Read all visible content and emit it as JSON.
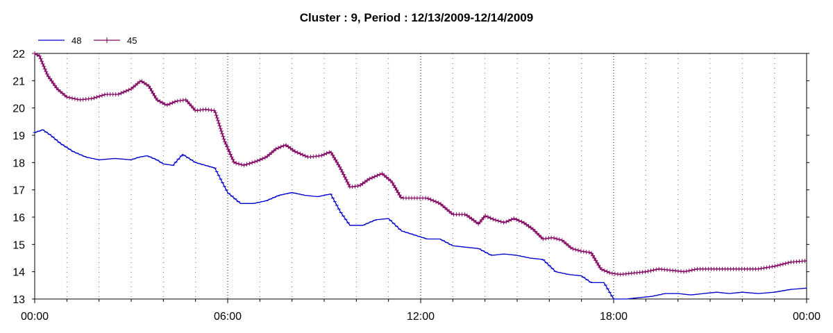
{
  "chart_data": {
    "type": "line",
    "title": "Cluster : 9, Period : 12/13/2009-12/14/2009",
    "xlabel": "",
    "ylabel": "",
    "x_ticks": [
      "00:00",
      "06:00",
      "12:00",
      "18:00",
      "00:00"
    ],
    "x_range_hours": [
      0,
      24
    ],
    "ylim": [
      13,
      22
    ],
    "y_ticks": [
      13,
      14,
      15,
      16,
      17,
      18,
      19,
      20,
      21,
      22
    ],
    "grid": {
      "major_vertical": "dotted",
      "minor_vertical": "dotted"
    },
    "legend_position": "top-left",
    "series": [
      {
        "name": "48",
        "color": "#0000cc",
        "marker": "none",
        "x": [
          0,
          0.25,
          0.5,
          0.8,
          1.2,
          1.6,
          2.0,
          2.5,
          3.0,
          3.25,
          3.5,
          3.8,
          4.0,
          4.3,
          4.6,
          5.0,
          5.3,
          5.6,
          6.0,
          6.4,
          6.8,
          7.2,
          7.6,
          8.0,
          8.4,
          8.8,
          9.2,
          9.5,
          9.8,
          10.2,
          10.6,
          11.0,
          11.4,
          11.8,
          12.2,
          12.6,
          13.0,
          13.4,
          13.8,
          14.2,
          14.6,
          15.0,
          15.4,
          15.8,
          16.2,
          16.6,
          17.0,
          17.3,
          17.7,
          18.0,
          18.4,
          18.8,
          19.2,
          19.6,
          20.0,
          20.4,
          20.8,
          21.2,
          21.6,
          22.0,
          22.5,
          23.0,
          23.5,
          24.0
        ],
        "values": [
          19.1,
          19.2,
          19.0,
          18.7,
          18.4,
          18.2,
          18.1,
          18.15,
          18.1,
          18.2,
          18.25,
          18.1,
          17.95,
          17.9,
          18.3,
          18.0,
          17.9,
          17.8,
          16.9,
          16.5,
          16.5,
          16.6,
          16.8,
          16.9,
          16.8,
          16.75,
          16.85,
          16.2,
          15.7,
          15.7,
          15.9,
          15.95,
          15.5,
          15.35,
          15.2,
          15.2,
          14.95,
          14.9,
          14.85,
          14.6,
          14.65,
          14.6,
          14.5,
          14.45,
          14.0,
          13.9,
          13.85,
          13.6,
          13.6,
          13.0,
          13.0,
          13.05,
          13.1,
          13.2,
          13.2,
          13.15,
          13.2,
          13.25,
          13.2,
          13.25,
          13.2,
          13.25,
          13.35,
          13.4
        ]
      },
      {
        "name": "45",
        "color": "#800060",
        "marker": "plus",
        "x": [
          0,
          0.15,
          0.4,
          0.7,
          1.0,
          1.4,
          1.8,
          2.2,
          2.6,
          3.0,
          3.3,
          3.55,
          3.8,
          4.1,
          4.4,
          4.7,
          5.0,
          5.3,
          5.6,
          5.9,
          6.2,
          6.5,
          6.9,
          7.2,
          7.5,
          7.8,
          8.1,
          8.5,
          8.9,
          9.2,
          9.5,
          9.8,
          10.1,
          10.4,
          10.8,
          11.1,
          11.4,
          11.8,
          12.2,
          12.6,
          13.0,
          13.4,
          13.8,
          14.0,
          14.3,
          14.6,
          14.9,
          15.2,
          15.5,
          15.8,
          16.1,
          16.4,
          16.7,
          17.0,
          17.3,
          17.6,
          17.9,
          18.2,
          18.6,
          19.0,
          19.4,
          19.8,
          20.2,
          20.6,
          21.0,
          21.5,
          22.0,
          22.5,
          23.0,
          23.5,
          24.0
        ],
        "values": [
          22.0,
          21.9,
          21.2,
          20.7,
          20.4,
          20.3,
          20.35,
          20.5,
          20.5,
          20.7,
          21.0,
          20.8,
          20.3,
          20.1,
          20.25,
          20.3,
          19.9,
          19.95,
          19.9,
          18.8,
          18.0,
          17.9,
          18.05,
          18.2,
          18.5,
          18.65,
          18.4,
          18.2,
          18.25,
          18.4,
          17.8,
          17.1,
          17.15,
          17.4,
          17.6,
          17.3,
          16.7,
          16.7,
          16.7,
          16.5,
          16.1,
          16.1,
          15.75,
          16.05,
          15.9,
          15.8,
          15.95,
          15.8,
          15.55,
          15.2,
          15.25,
          15.15,
          14.85,
          14.75,
          14.7,
          14.1,
          13.95,
          13.9,
          13.95,
          14.0,
          14.1,
          14.05,
          14.0,
          14.1,
          14.1,
          14.1,
          14.1,
          14.1,
          14.2,
          14.35,
          14.4
        ]
      }
    ]
  }
}
